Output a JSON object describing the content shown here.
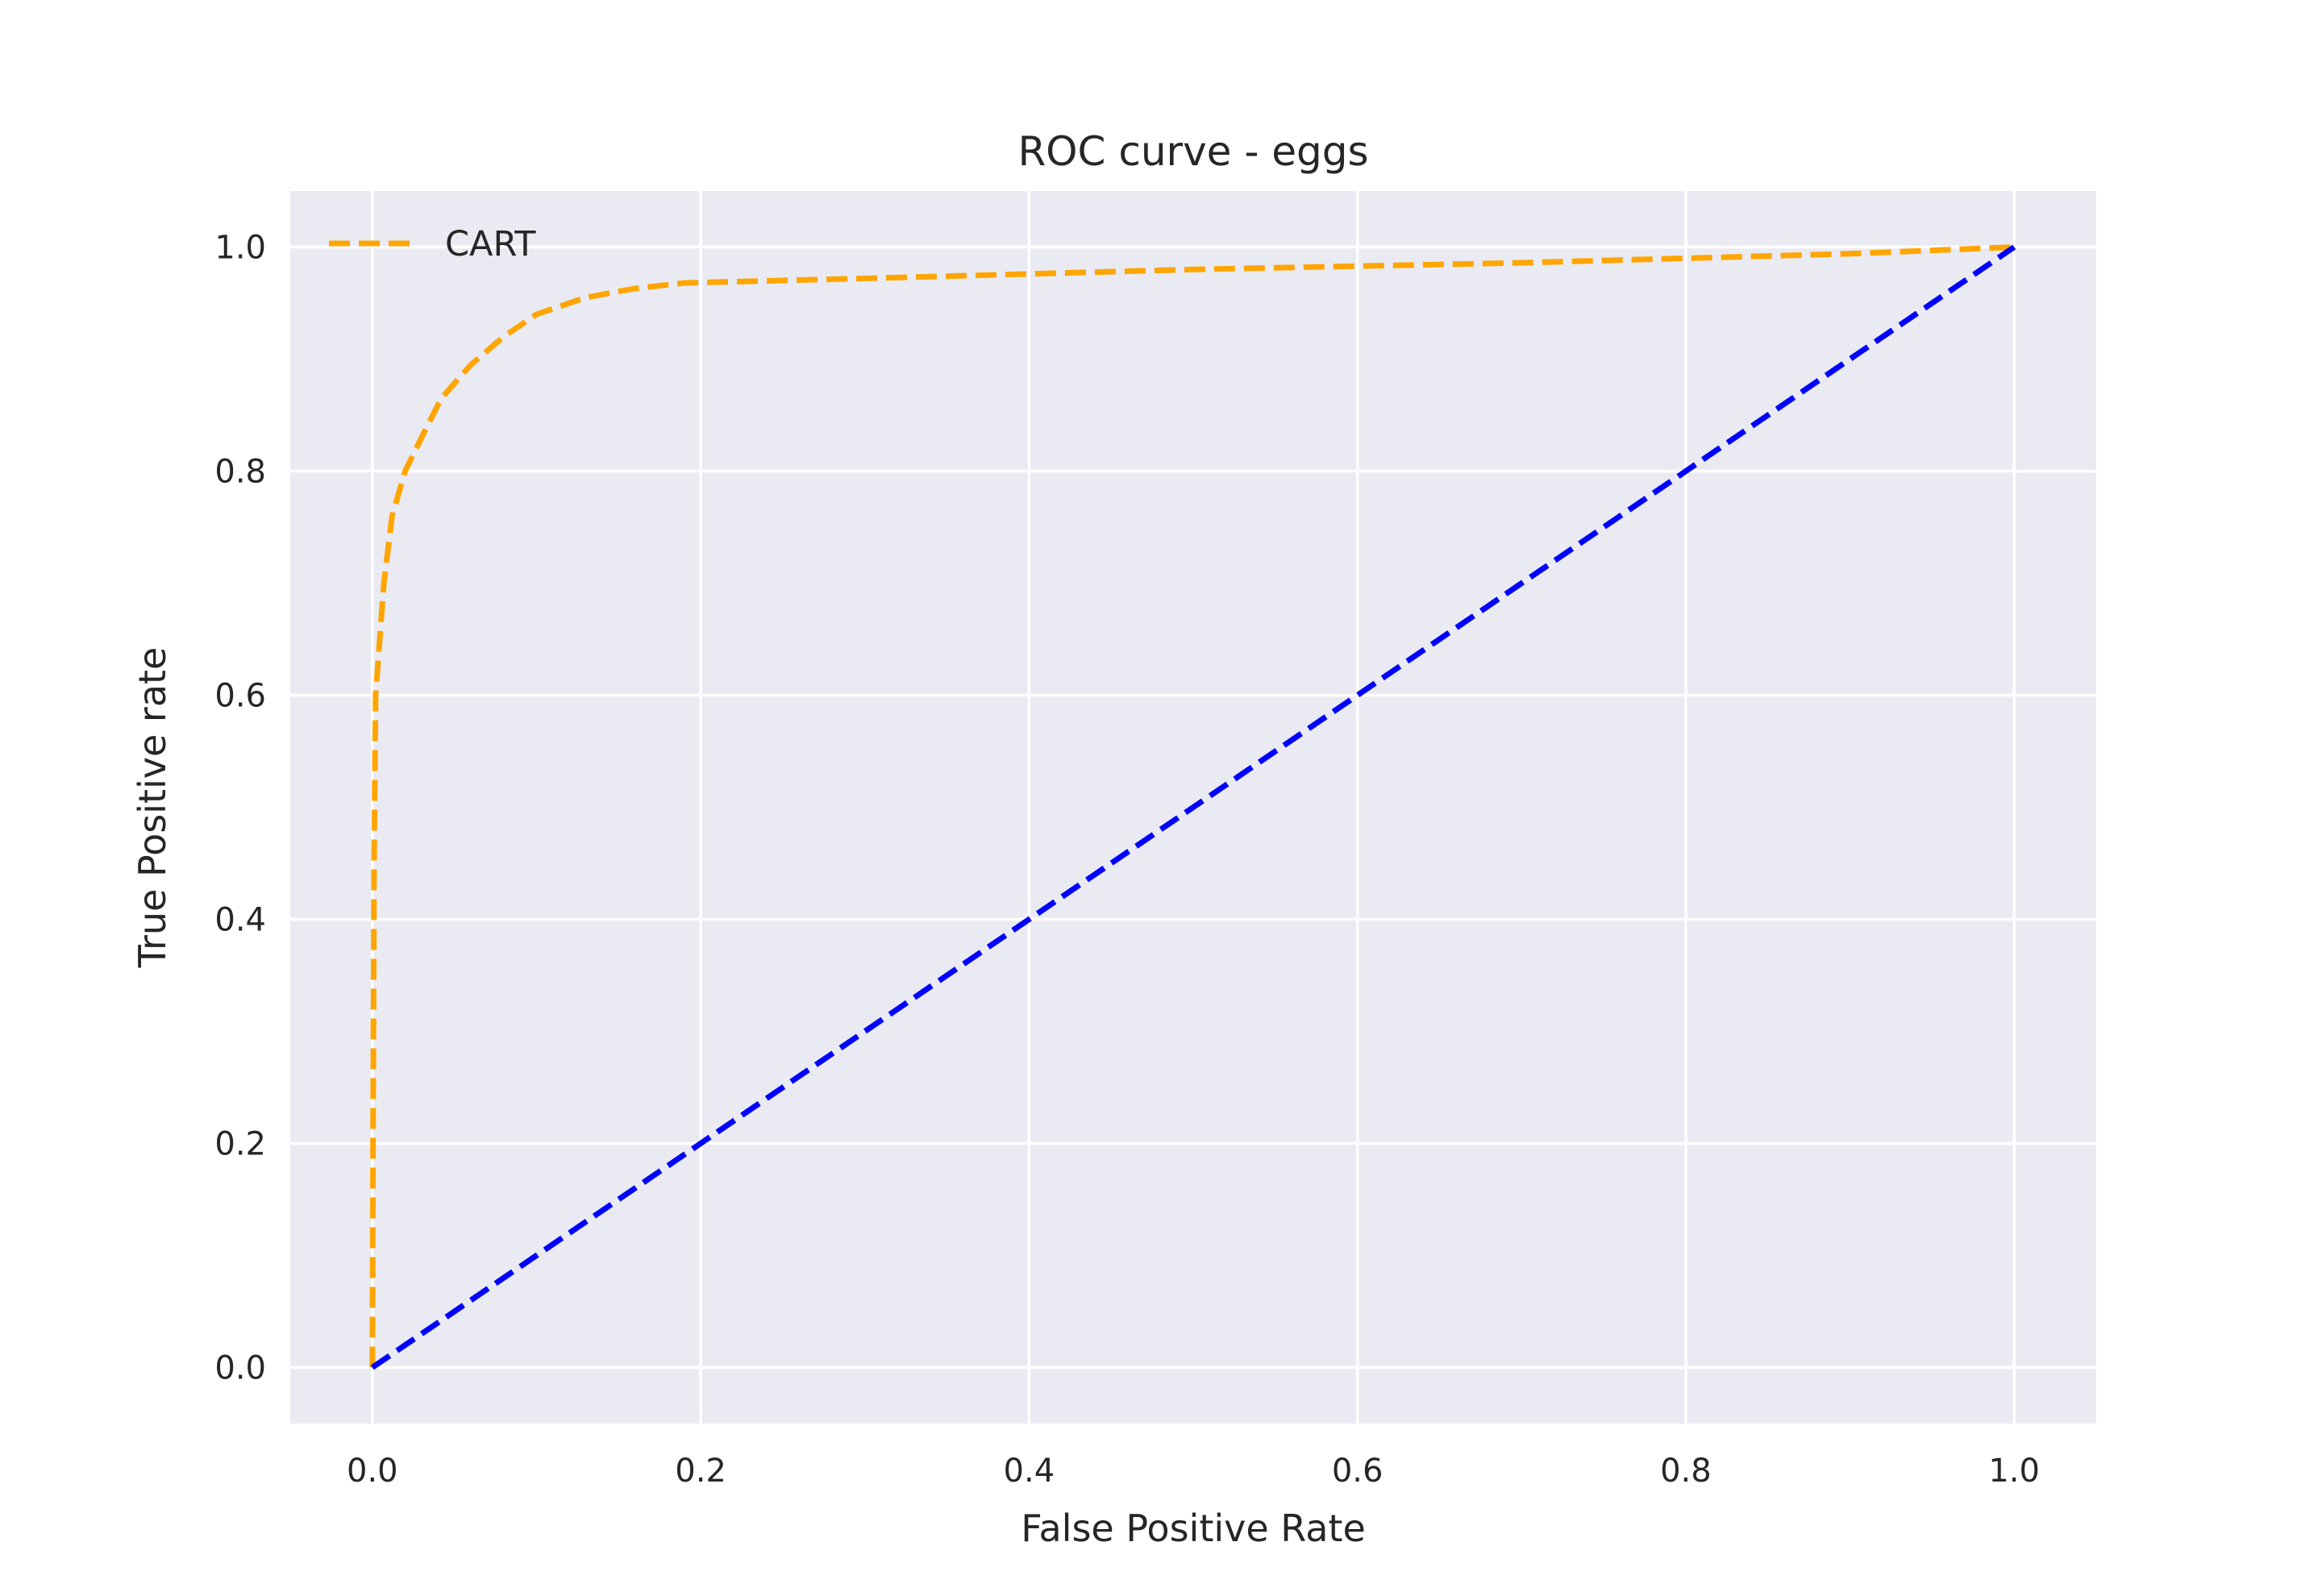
{
  "chart_data": {
    "type": "line",
    "title": "ROC curve - eggs",
    "xlabel": "False Positive Rate",
    "ylabel": "True Positive rate",
    "xlim": [
      -0.05,
      1.05
    ],
    "ylim": [
      -0.05,
      1.05
    ],
    "xticks": [
      0.0,
      0.2,
      0.4,
      0.6,
      0.8,
      1.0
    ],
    "yticks": [
      0.0,
      0.2,
      0.4,
      0.6,
      0.8,
      1.0
    ],
    "xtick_labels": [
      "0.0",
      "0.2",
      "0.4",
      "0.6",
      "0.8",
      "1.0"
    ],
    "ytick_labels": [
      "0.0",
      "0.2",
      "0.4",
      "0.6",
      "0.8",
      "1.0"
    ],
    "grid": true,
    "legend_position": "top-left",
    "background_color": "#eaeaf2",
    "grid_color": "#ffffff",
    "series": [
      {
        "name": "CART",
        "color": "#ffa500",
        "style": "dashed",
        "x": [
          0.0,
          0.001,
          0.002,
          0.004,
          0.007,
          0.012,
          0.02,
          0.03,
          0.042,
          0.06,
          0.08,
          0.1,
          0.13,
          0.16,
          0.19,
          0.3,
          0.5,
          0.7,
          0.9,
          1.0
        ],
        "y": [
          0.0,
          0.45,
          0.6,
          0.64,
          0.7,
          0.76,
          0.8,
          0.83,
          0.865,
          0.895,
          0.92,
          0.94,
          0.955,
          0.963,
          0.968,
          0.972,
          0.98,
          0.986,
          0.994,
          1.0
        ]
      },
      {
        "name": "",
        "color": "#0000ff",
        "style": "dashed",
        "x": [
          0.0,
          1.0
        ],
        "y": [
          0.0,
          1.0
        ]
      }
    ]
  }
}
